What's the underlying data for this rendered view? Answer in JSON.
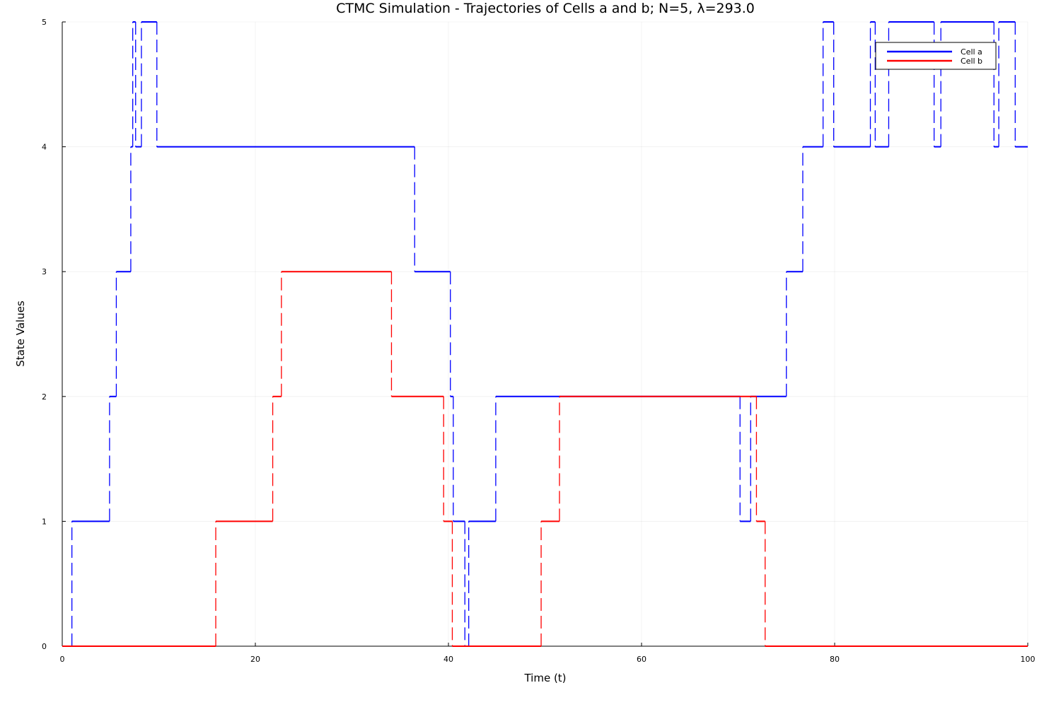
{
  "chart_data": {
    "type": "line",
    "title": "CTMC Simulation - Trajectories of Cells a and b; N=5, λ=293.0",
    "xlabel": "Time (t)",
    "ylabel": "State Values",
    "xlim": [
      0,
      100
    ],
    "ylim": [
      0,
      5
    ],
    "xticks": [
      "0",
      "20",
      "40",
      "60",
      "80",
      "100"
    ],
    "yticks": [
      "0",
      "1",
      "2",
      "3",
      "4",
      "5"
    ],
    "grid": true,
    "legend_position": "top-right",
    "step": true,
    "series": [
      {
        "name": "Cell a",
        "color": "#0000ff",
        "x": [
          0,
          1.0,
          4.9,
          5.6,
          7.1,
          7.3,
          7.6,
          8.2,
          9.8,
          36.5,
          40.2,
          40.5,
          41.7,
          42.1,
          44.9,
          70.2,
          71.3,
          75.0,
          76.7,
          78.8,
          79.9,
          83.7,
          84.2,
          85.6,
          90.3,
          91.0,
          96.5,
          97.0,
          98.7,
          100
        ],
        "y": [
          0,
          1,
          2,
          3,
          4,
          5,
          4,
          5,
          4,
          3,
          2,
          1,
          0,
          1,
          2,
          1,
          2,
          3,
          4,
          5,
          4,
          5,
          4,
          5,
          4,
          5,
          4,
          5,
          4,
          4
        ]
      },
      {
        "name": "Cell b",
        "color": "#ff0000",
        "x": [
          0,
          15.9,
          21.8,
          22.7,
          34.1,
          39.5,
          40.4,
          49.6,
          51.5,
          71.9,
          72.8,
          100
        ],
        "y": [
          0,
          1,
          2,
          3,
          2,
          1,
          0,
          1,
          2,
          1,
          0,
          0
        ]
      }
    ]
  }
}
